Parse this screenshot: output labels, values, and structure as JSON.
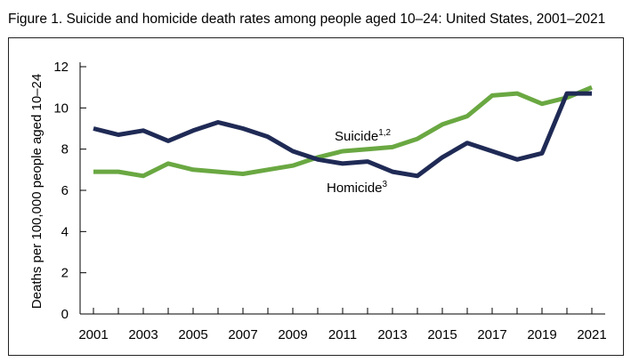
{
  "figure": {
    "title": "Figure 1. Suicide and homicide death rates among people aged 10–24: United States, 2001–2021"
  },
  "chart_data": {
    "type": "line",
    "ylabel": "Deaths per 100,000 people aged 10–24",
    "xlabel": "",
    "xlim": [
      2001,
      2021
    ],
    "ylim": [
      0,
      12
    ],
    "yticks": [
      0,
      2,
      4,
      6,
      8,
      10,
      12
    ],
    "xticks": [
      2001,
      2003,
      2005,
      2007,
      2009,
      2011,
      2013,
      2015,
      2017,
      2019,
      2021
    ],
    "x": [
      2001,
      2002,
      2003,
      2004,
      2005,
      2006,
      2007,
      2008,
      2009,
      2010,
      2011,
      2012,
      2013,
      2014,
      2015,
      2016,
      2017,
      2018,
      2019,
      2020,
      2021
    ],
    "grid": false,
    "series": [
      {
        "name": "Suicide",
        "superscript": "1,2",
        "color": "#6aa842",
        "values": [
          6.9,
          6.9,
          6.7,
          7.3,
          7.0,
          6.9,
          6.8,
          7.0,
          7.2,
          7.6,
          7.9,
          8.0,
          8.1,
          8.5,
          9.2,
          9.6,
          10.6,
          10.7,
          10.2,
          10.5,
          11.0
        ]
      },
      {
        "name": "Homicide",
        "superscript": "3",
        "color": "#1f2a55",
        "values": [
          9.0,
          8.7,
          8.9,
          8.4,
          8.9,
          9.3,
          9.0,
          8.6,
          7.9,
          7.5,
          7.3,
          7.4,
          6.9,
          6.7,
          7.6,
          8.3,
          7.9,
          7.5,
          7.8,
          10.7,
          10.7
        ]
      }
    ]
  }
}
